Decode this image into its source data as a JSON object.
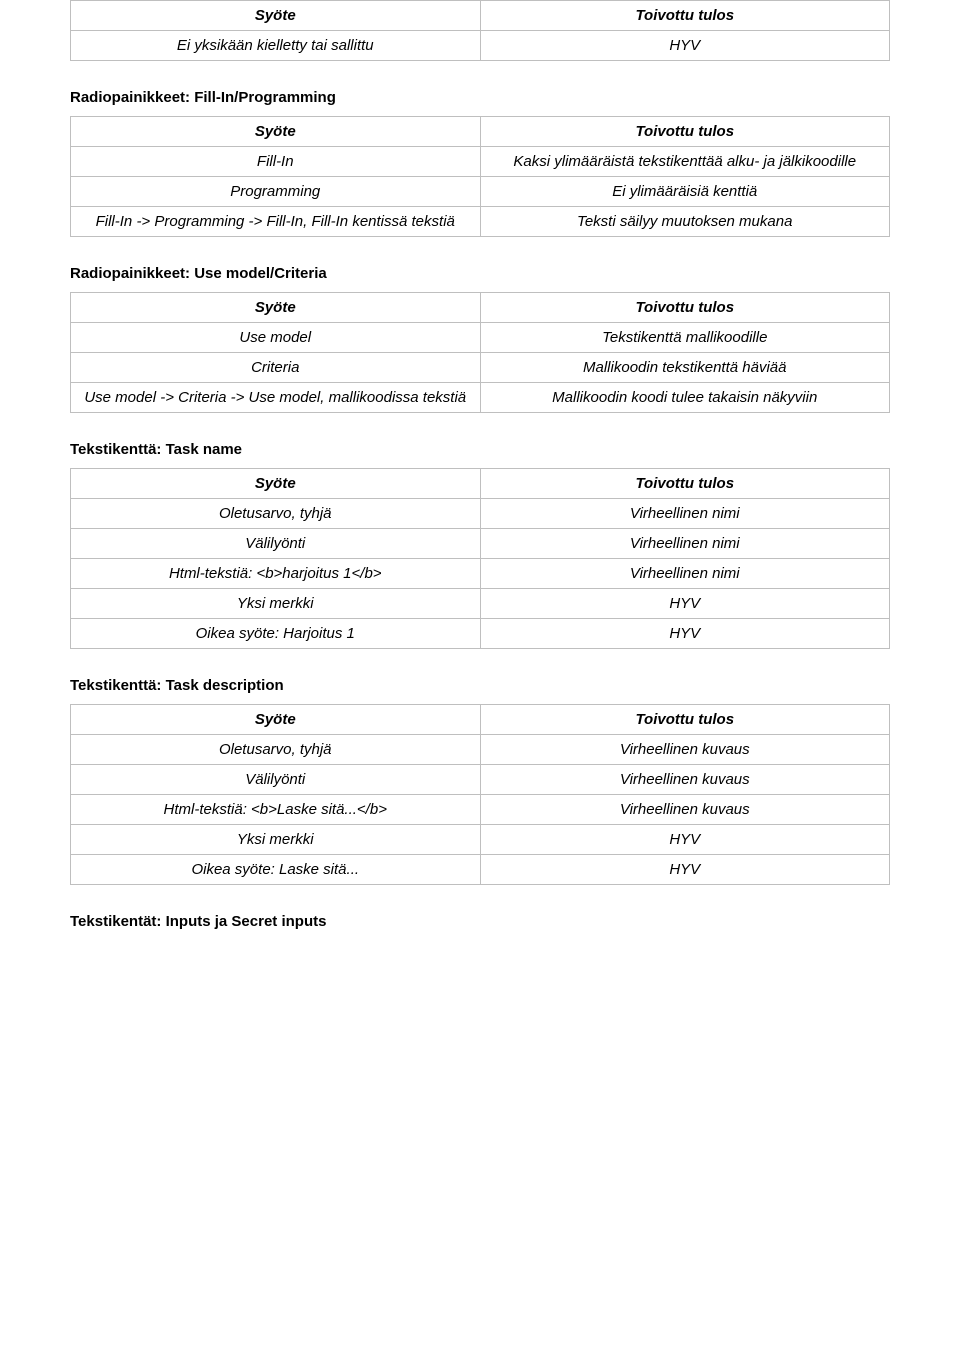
{
  "colors": {
    "border": "#bfbfbf",
    "text": "#000000",
    "background": "#ffffff"
  },
  "tables": [
    {
      "title": null,
      "header": [
        "Syöte",
        "Toivottu tulos"
      ],
      "rows": [
        [
          "Ei yksikään kielletty tai sallittu",
          "HYV"
        ]
      ]
    },
    {
      "title": "Radiopainikkeet: Fill-In/Programming",
      "header": [
        "Syöte",
        "Toivottu tulos"
      ],
      "rows": [
        [
          "Fill-In",
          "Kaksi ylimääräistä tekstikenttää alku- ja jälkikoodille"
        ],
        [
          "Programming",
          "Ei ylimääräisiä kenttiä"
        ],
        [
          "Fill-In -> Programming -> Fill-In, Fill-In kentissä tekstiä",
          "Teksti säilyy muutoksen mukana"
        ]
      ]
    },
    {
      "title": "Radiopainikkeet: Use model/Criteria",
      "header": [
        "Syöte",
        "Toivottu tulos"
      ],
      "rows": [
        [
          "Use model",
          "Tekstikenttä mallikoodille"
        ],
        [
          "Criteria",
          "Mallikoodin tekstikenttä häviää"
        ],
        [
          "Use model -> Criteria -> Use model, mallikoodissa tekstiä",
          "Mallikoodin koodi tulee takaisin näkyviin"
        ]
      ]
    },
    {
      "title": "Tekstikenttä: Task name",
      "header": [
        "Syöte",
        "Toivottu tulos"
      ],
      "rows": [
        [
          "Oletusarvo, tyhjä",
          "Virheellinen nimi"
        ],
        [
          "Välilyönti",
          "Virheellinen nimi"
        ],
        [
          "Html-tekstiä: <b>harjoitus 1</b>",
          "Virheellinen nimi"
        ],
        [
          "Yksi merkki",
          "HYV"
        ],
        [
          "Oikea syöte: Harjoitus 1",
          "HYV"
        ]
      ]
    },
    {
      "title": "Tekstikenttä: Task description",
      "header": [
        "Syöte",
        "Toivottu tulos"
      ],
      "rows": [
        [
          "Oletusarvo, tyhjä",
          "Virheellinen kuvaus"
        ],
        [
          "Välilyönti",
          "Virheellinen kuvaus"
        ],
        [
          "Html-tekstiä: <b>Laske sitä...</b>",
          "Virheellinen kuvaus"
        ],
        [
          "Yksi merkki",
          "HYV"
        ],
        [
          "Oikea syöte: Laske sitä...",
          "HYV"
        ]
      ]
    }
  ],
  "footer_title": "Tekstikentät: Inputs ja Secret inputs"
}
